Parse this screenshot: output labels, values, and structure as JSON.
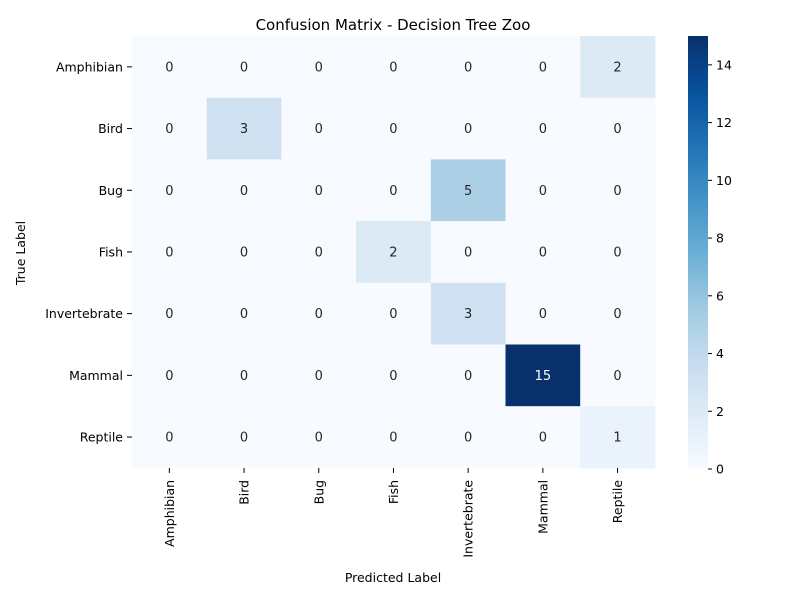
{
  "chart_data": {
    "type": "heatmap",
    "title": "Confusion Matrix - Decision Tree Zoo",
    "xlabel": "Predicted Label",
    "ylabel": "True Label",
    "x_categories": [
      "Amphibian",
      "Bird",
      "Bug",
      "Fish",
      "Invertebrate",
      "Mammal",
      "Reptile"
    ],
    "y_categories": [
      "Amphibian",
      "Bird",
      "Bug",
      "Fish",
      "Invertebrate",
      "Mammal",
      "Reptile"
    ],
    "values": [
      [
        0,
        0,
        0,
        0,
        0,
        0,
        2
      ],
      [
        0,
        3,
        0,
        0,
        0,
        0,
        0
      ],
      [
        0,
        0,
        0,
        0,
        5,
        0,
        0
      ],
      [
        0,
        0,
        0,
        2,
        0,
        0,
        0
      ],
      [
        0,
        0,
        0,
        0,
        3,
        0,
        0
      ],
      [
        0,
        0,
        0,
        0,
        0,
        15,
        0
      ],
      [
        0,
        0,
        0,
        0,
        0,
        0,
        1
      ]
    ],
    "colorscale": "Blues",
    "color_range": [
      0,
      15
    ],
    "colorbar_ticks": [
      0,
      2,
      4,
      6,
      8,
      10,
      12,
      14
    ]
  }
}
